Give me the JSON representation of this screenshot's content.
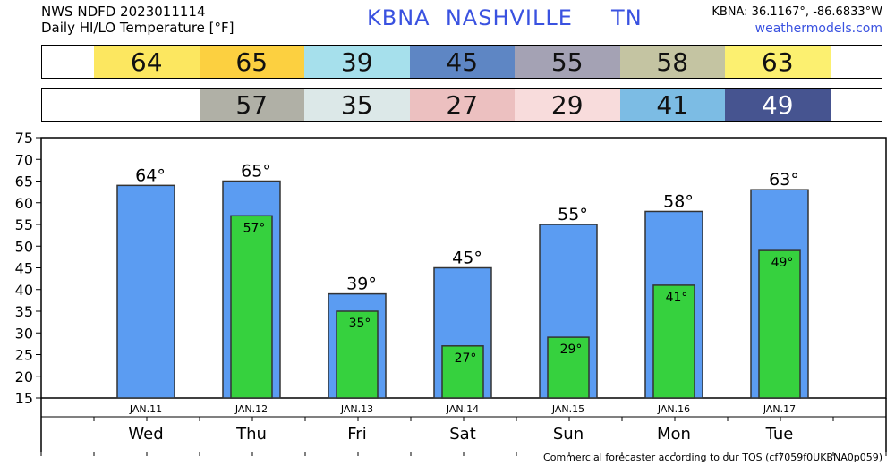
{
  "header": {
    "line1": "NWS NDFD 2023011114",
    "line2": "Daily HI/LO Temperature [°F]",
    "station": "KBNA  NASHVILLE     TN",
    "coords": "KBNA: 36.1167°, -86.6833°W",
    "site": "weathermodels.com"
  },
  "hi_band": [
    {
      "value": "",
      "color": "#ffffff"
    },
    {
      "value": "64",
      "color": "#fce760"
    },
    {
      "value": "65",
      "color": "#fcd040"
    },
    {
      "value": "39",
      "color": "#a6e0ec"
    },
    {
      "value": "45",
      "color": "#5e86c4"
    },
    {
      "value": "55",
      "color": "#a4a2b4"
    },
    {
      "value": "58",
      "color": "#c4c4a2"
    },
    {
      "value": "63",
      "color": "#fcf070"
    }
  ],
  "lo_band": [
    {
      "value": "",
      "color": "#ffffff"
    },
    {
      "value": "",
      "color": "#ffffff"
    },
    {
      "value": "57",
      "color": "#b0b0a6"
    },
    {
      "value": "35",
      "color": "#dce8e8"
    },
    {
      "value": "27",
      "color": "#ecc0c0"
    },
    {
      "value": "29",
      "color": "#f8dcdc"
    },
    {
      "value": "41",
      "color": "#7cbce4"
    },
    {
      "value": "49",
      "color": "#465490"
    }
  ],
  "chart_data": {
    "type": "bar",
    "categories": [
      "JAN.11",
      "JAN.12",
      "JAN.13",
      "JAN.14",
      "JAN.15",
      "JAN.16",
      "JAN.17"
    ],
    "days": [
      "Wed",
      "Thu",
      "Fri",
      "Sat",
      "Sun",
      "Mon",
      "Tue"
    ],
    "series": [
      {
        "values": [
          64,
          65,
          39,
          45,
          55,
          58,
          63
        ],
        "color": "#5b9cf2"
      },
      {
        "values": [
          null,
          57,
          35,
          27,
          29,
          41,
          49
        ],
        "color": "#36d13e"
      }
    ],
    "ylim": [
      15,
      75
    ],
    "yticks": [
      15,
      20,
      25,
      30,
      35,
      40,
      45,
      50,
      55,
      60,
      65,
      70,
      75
    ],
    "grid": false
  },
  "footer": "Commercial forecaster according to our TOS (cf7059f0UKBNA0p059)"
}
